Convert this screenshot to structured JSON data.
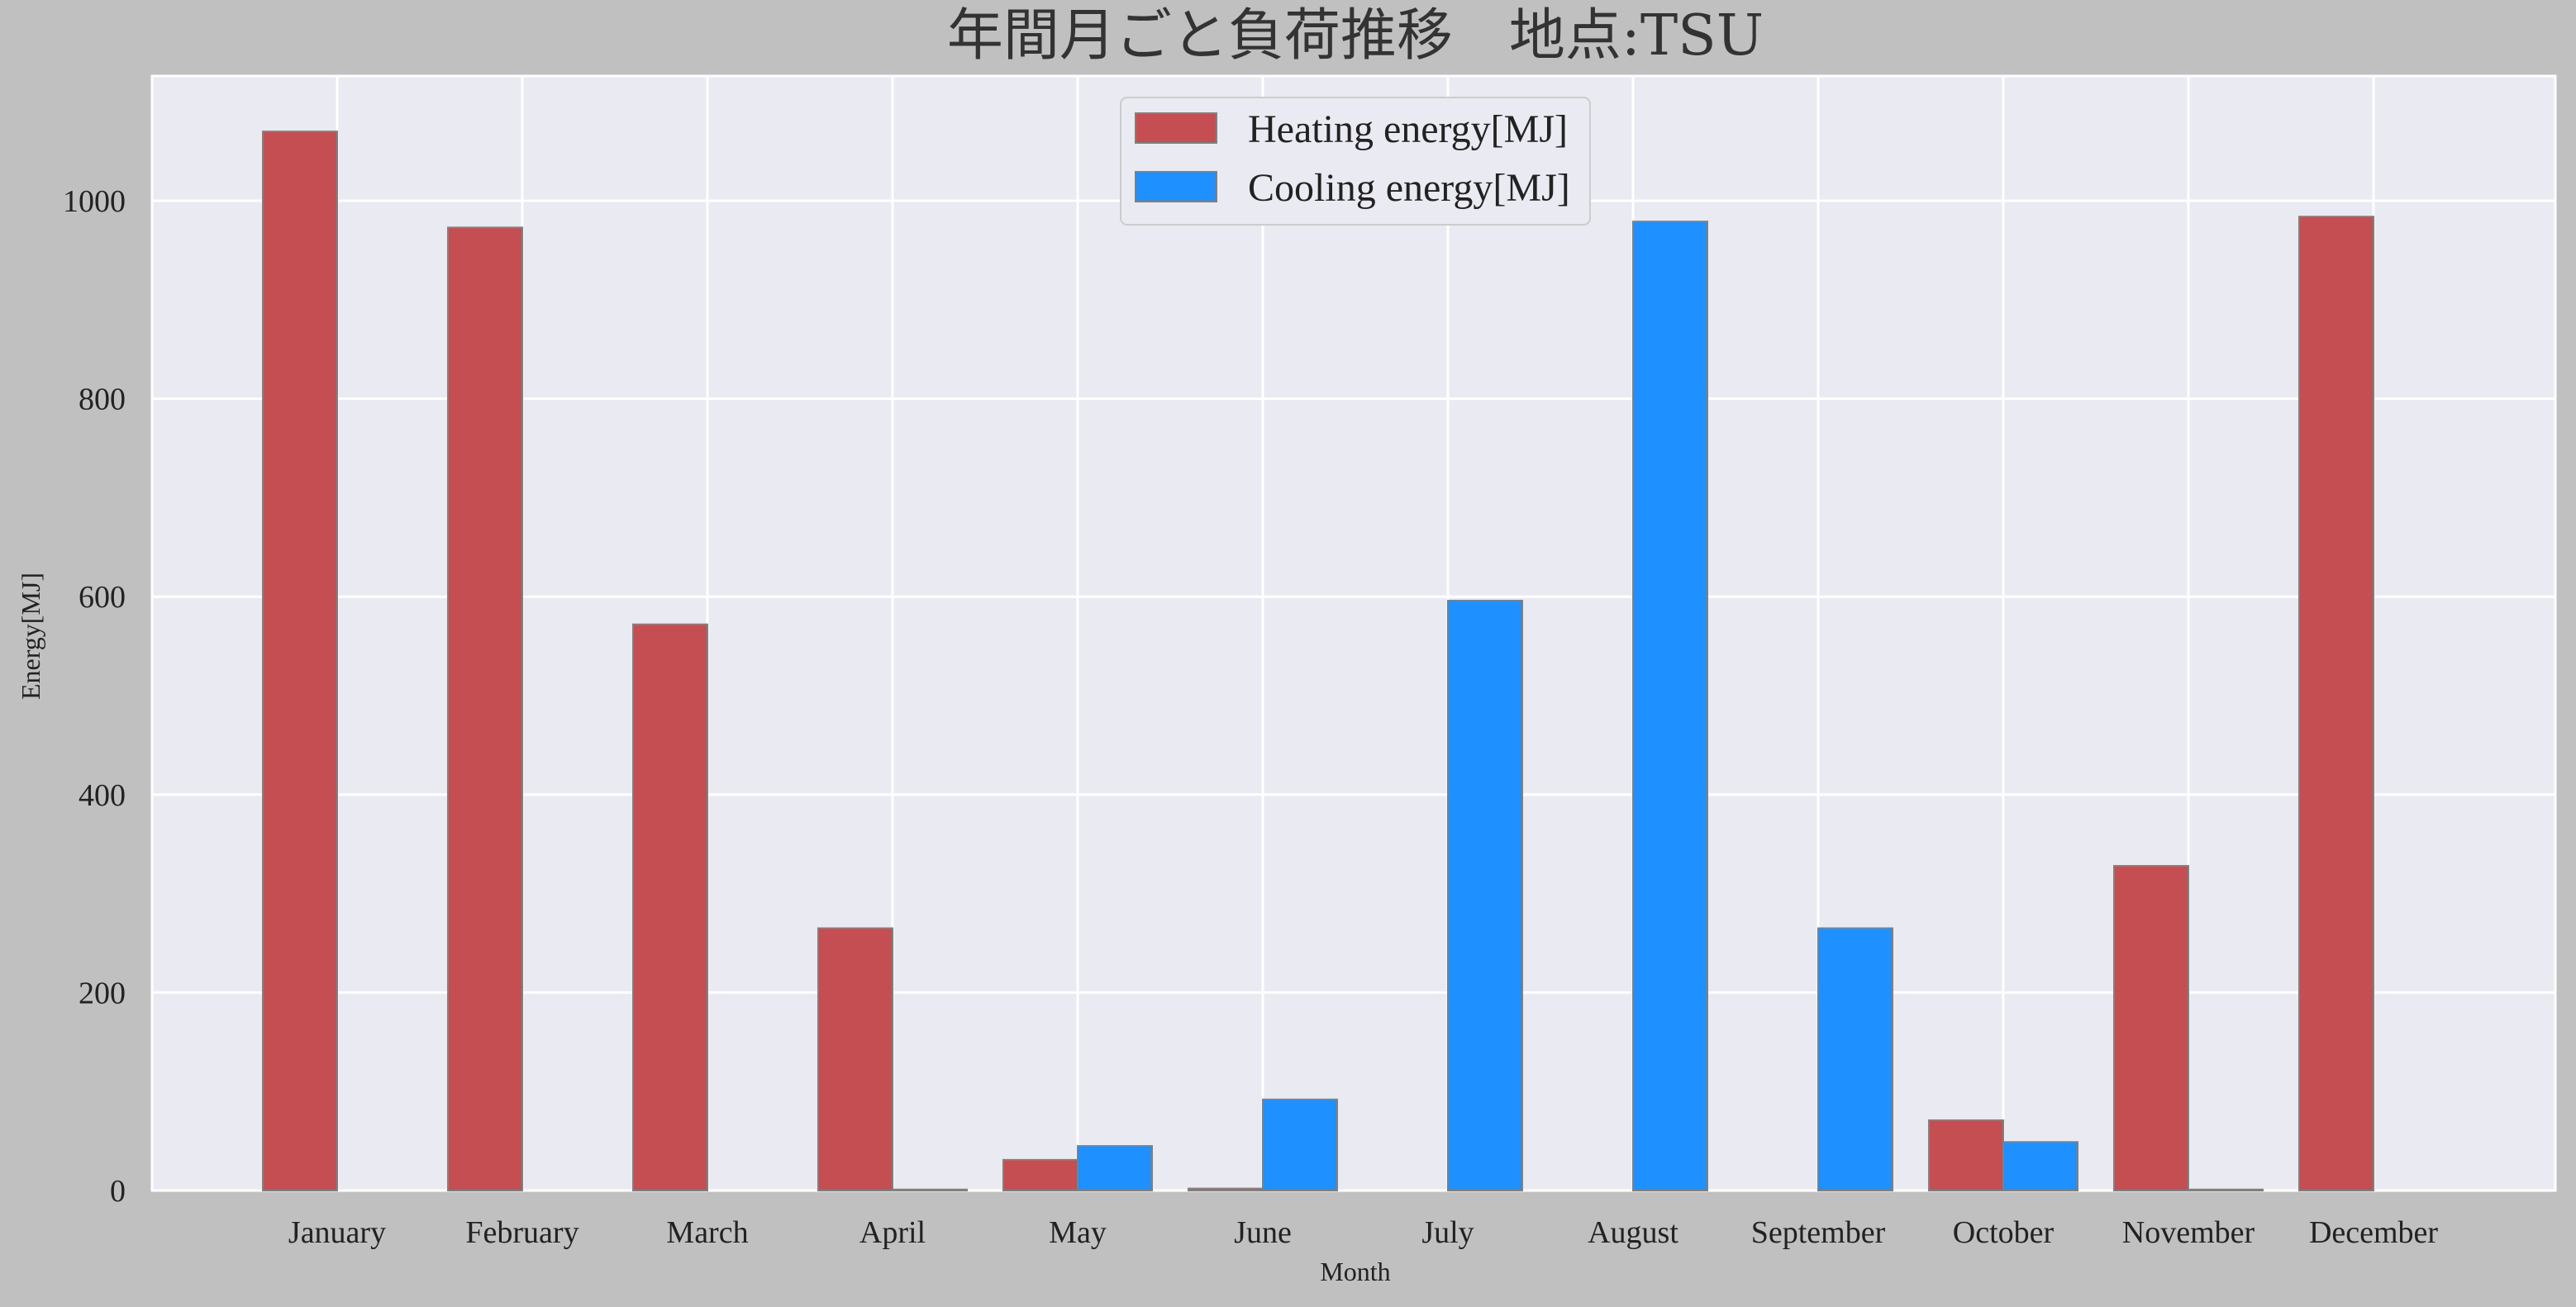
{
  "chart_data": {
    "type": "bar",
    "title": "年間月ごと負荷推移　地点:TSU",
    "xlabel": "Month",
    "ylabel": "Energy[MJ]",
    "categories": [
      "January",
      "February",
      "March",
      "April",
      "May",
      "June",
      "July",
      "August",
      "September",
      "October",
      "November",
      "December"
    ],
    "series": [
      {
        "name": "Heating energy[MJ]",
        "color": "#c44e52",
        "values": [
          1070,
          973,
          572,
          265,
          31,
          2,
          0,
          0,
          0,
          71,
          328,
          984
        ]
      },
      {
        "name": "Cooling energy[MJ]",
        "color": "#1e90ff",
        "values": [
          0,
          0,
          0,
          1,
          45,
          92,
          596,
          979,
          265,
          49,
          1,
          0
        ]
      }
    ],
    "ylim": [
      0,
      1120
    ],
    "yticks": [
      0,
      200,
      400,
      600,
      800,
      1000
    ],
    "grid": true,
    "legend_position": "top-center",
    "plot_background": "#eaeaf2",
    "figure_background": "#c0c0c0",
    "bar_edge_color": "#808080"
  }
}
